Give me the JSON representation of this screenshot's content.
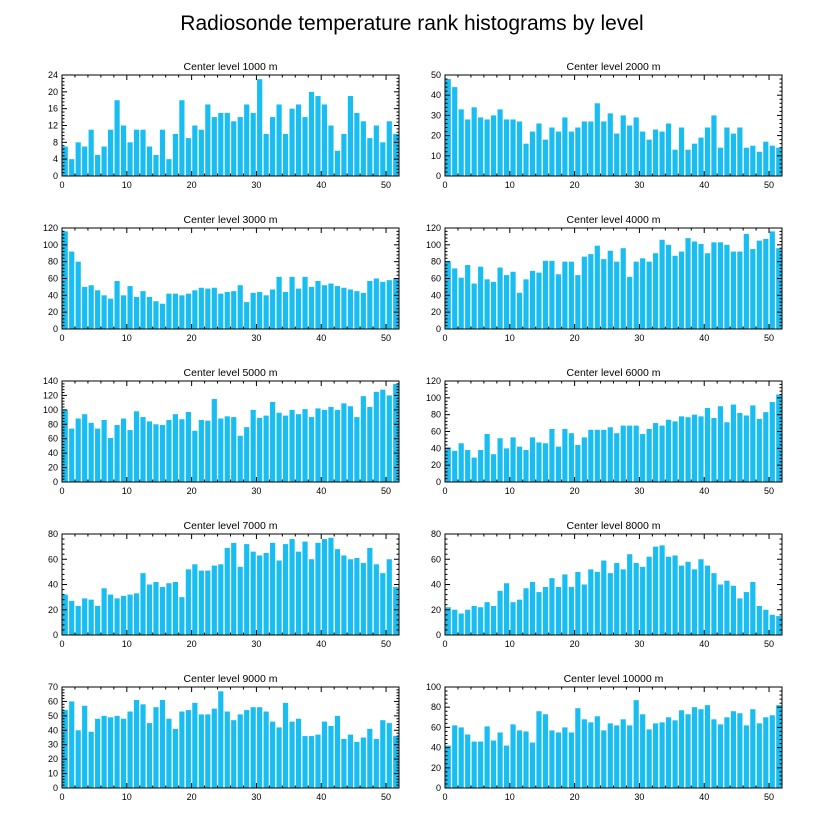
{
  "title": "Radiosonde temperature rank histograms by level",
  "bar_color": "#18bdf2",
  "chart_data": [
    {
      "type": "bar",
      "title": "Center level 1000 m",
      "xlim": [
        0,
        52
      ],
      "xticks": [
        0,
        10,
        20,
        30,
        40,
        50
      ],
      "ylim": [
        0,
        24
      ],
      "yticks": [
        0,
        4,
        8,
        12,
        16,
        20,
        24
      ],
      "x": [
        0,
        1,
        2,
        3,
        4,
        5,
        6,
        7,
        8,
        9,
        10,
        11,
        12,
        13,
        14,
        15,
        16,
        17,
        18,
        19,
        20,
        21,
        22,
        23,
        24,
        25,
        26,
        27,
        28,
        29,
        30,
        31,
        32,
        33,
        34,
        35,
        36,
        37,
        38,
        39,
        40,
        41,
        42,
        43,
        44,
        45,
        46,
        47,
        48,
        49,
        50,
        51
      ],
      "values": [
        7,
        4,
        8,
        7,
        11,
        5,
        7,
        11,
        18,
        12,
        8,
        11,
        11,
        7,
        5,
        11,
        4,
        10,
        18,
        9,
        12,
        11,
        17,
        14,
        15,
        15,
        13,
        14,
        17,
        15,
        23,
        10,
        14,
        17,
        10,
        16,
        17,
        14,
        20,
        19,
        17,
        12,
        6,
        10,
        19,
        15,
        13,
        9,
        12,
        8,
        13,
        10
      ]
    },
    {
      "type": "bar",
      "title": "Center level 2000 m",
      "xlim": [
        0,
        52
      ],
      "xticks": [
        0,
        10,
        20,
        30,
        40,
        50
      ],
      "ylim": [
        0,
        50
      ],
      "yticks": [
        0,
        10,
        20,
        30,
        40,
        50
      ],
      "x": [
        0,
        1,
        2,
        3,
        4,
        5,
        6,
        7,
        8,
        9,
        10,
        11,
        12,
        13,
        14,
        15,
        16,
        17,
        18,
        19,
        20,
        21,
        22,
        23,
        24,
        25,
        26,
        27,
        28,
        29,
        30,
        31,
        32,
        33,
        34,
        35,
        36,
        37,
        38,
        39,
        40,
        41,
        42,
        43,
        44,
        45,
        46,
        47,
        48,
        49,
        50,
        51
      ],
      "values": [
        48,
        44,
        33,
        28,
        34,
        29,
        28,
        30,
        33,
        28,
        28,
        27,
        16,
        22,
        26,
        18,
        24,
        22,
        29,
        22,
        24,
        27,
        27,
        36,
        27,
        31,
        21,
        30,
        25,
        29,
        22,
        18,
        23,
        22,
        26,
        13,
        24,
        13,
        16,
        19,
        24,
        30,
        14,
        24,
        21,
        24,
        14,
        15,
        12,
        17,
        15,
        14
      ]
    },
    {
      "type": "bar",
      "title": "Center level 3000 m",
      "xlim": [
        0,
        52
      ],
      "xticks": [
        0,
        10,
        20,
        30,
        40,
        50
      ],
      "ylim": [
        0,
        120
      ],
      "yticks": [
        0,
        20,
        40,
        60,
        80,
        100,
        120
      ],
      "x": [
        0,
        1,
        2,
        3,
        4,
        5,
        6,
        7,
        8,
        9,
        10,
        11,
        12,
        13,
        14,
        15,
        16,
        17,
        18,
        19,
        20,
        21,
        22,
        23,
        24,
        25,
        26,
        27,
        28,
        29,
        30,
        31,
        32,
        33,
        34,
        35,
        36,
        37,
        38,
        39,
        40,
        41,
        42,
        43,
        44,
        45,
        46,
        47,
        48,
        49,
        50,
        51
      ],
      "values": [
        116,
        92,
        80,
        50,
        52,
        46,
        40,
        36,
        57,
        40,
        51,
        38,
        45,
        38,
        33,
        30,
        42,
        42,
        40,
        42,
        46,
        49,
        48,
        49,
        42,
        44,
        45,
        52,
        32,
        43,
        44,
        40,
        47,
        62,
        44,
        62,
        48,
        62,
        50,
        57,
        52,
        54,
        51,
        49,
        47,
        45,
        43,
        57,
        60,
        56,
        58,
        60
      ]
    },
    {
      "type": "bar",
      "title": "Center level 4000 m",
      "xlim": [
        0,
        52
      ],
      "xticks": [
        0,
        10,
        20,
        30,
        40,
        50
      ],
      "ylim": [
        0,
        120
      ],
      "yticks": [
        0,
        20,
        40,
        60,
        80,
        100,
        120
      ],
      "x": [
        0,
        1,
        2,
        3,
        4,
        5,
        6,
        7,
        8,
        9,
        10,
        11,
        12,
        13,
        14,
        15,
        16,
        17,
        18,
        19,
        20,
        21,
        22,
        23,
        24,
        25,
        26,
        27,
        28,
        29,
        30,
        31,
        32,
        33,
        34,
        35,
        36,
        37,
        38,
        39,
        40,
        41,
        42,
        43,
        44,
        45,
        46,
        47,
        48,
        49,
        50,
        51
      ],
      "values": [
        80,
        72,
        61,
        76,
        54,
        74,
        59,
        56,
        73,
        64,
        68,
        43,
        59,
        69,
        67,
        81,
        81,
        65,
        80,
        80,
        64,
        86,
        89,
        99,
        83,
        93,
        80,
        96,
        62,
        80,
        84,
        80,
        90,
        106,
        100,
        87,
        92,
        108,
        104,
        101,
        90,
        103,
        103,
        100,
        92,
        92,
        113,
        95,
        105,
        107,
        116,
        96
      ]
    },
    {
      "type": "bar",
      "title": "Center level 5000 m",
      "xlim": [
        0,
        52
      ],
      "xticks": [
        0,
        10,
        20,
        30,
        40,
        50
      ],
      "ylim": [
        0,
        140
      ],
      "yticks": [
        0,
        20,
        40,
        60,
        80,
        100,
        120,
        140
      ],
      "x": [
        0,
        1,
        2,
        3,
        4,
        5,
        6,
        7,
        8,
        9,
        10,
        11,
        12,
        13,
        14,
        15,
        16,
        17,
        18,
        19,
        20,
        21,
        22,
        23,
        24,
        25,
        26,
        27,
        28,
        29,
        30,
        31,
        32,
        33,
        34,
        35,
        36,
        37,
        38,
        39,
        40,
        41,
        42,
        43,
        44,
        45,
        46,
        47,
        48,
        49,
        50,
        51
      ],
      "values": [
        100,
        74,
        88,
        94,
        82,
        74,
        86,
        61,
        79,
        88,
        72,
        98,
        90,
        84,
        80,
        79,
        86,
        94,
        87,
        97,
        71,
        86,
        85,
        115,
        88,
        91,
        90,
        64,
        76,
        100,
        89,
        92,
        111,
        96,
        92,
        100,
        94,
        101,
        90,
        102,
        100,
        104,
        100,
        109,
        105,
        90,
        119,
        104,
        125,
        128,
        120,
        136
      ]
    },
    {
      "type": "bar",
      "title": "Center level 6000 m",
      "xlim": [
        0,
        52
      ],
      "xticks": [
        0,
        10,
        20,
        30,
        40,
        50
      ],
      "ylim": [
        0,
        120
      ],
      "yticks": [
        0,
        20,
        40,
        60,
        80,
        100,
        120
      ],
      "x": [
        0,
        1,
        2,
        3,
        4,
        5,
        6,
        7,
        8,
        9,
        10,
        11,
        12,
        13,
        14,
        15,
        16,
        17,
        18,
        19,
        20,
        21,
        22,
        23,
        24,
        25,
        26,
        27,
        28,
        29,
        30,
        31,
        32,
        33,
        34,
        35,
        36,
        37,
        38,
        39,
        40,
        41,
        42,
        43,
        44,
        45,
        46,
        47,
        48,
        49,
        50,
        51
      ],
      "values": [
        41,
        37,
        46,
        38,
        29,
        38,
        57,
        33,
        52,
        40,
        53,
        42,
        38,
        53,
        47,
        46,
        63,
        42,
        63,
        58,
        44,
        53,
        62,
        62,
        62,
        65,
        58,
        67,
        67,
        67,
        57,
        63,
        70,
        67,
        74,
        72,
        78,
        77,
        80,
        78,
        88,
        76,
        90,
        71,
        92,
        82,
        79,
        91,
        75,
        83,
        95,
        104
      ]
    },
    {
      "type": "bar",
      "title": "Center level 7000 m",
      "xlim": [
        0,
        52
      ],
      "xticks": [
        0,
        10,
        20,
        30,
        40,
        50
      ],
      "ylim": [
        0,
        80
      ],
      "yticks": [
        0,
        20,
        40,
        60,
        80
      ],
      "x": [
        0,
        1,
        2,
        3,
        4,
        5,
        6,
        7,
        8,
        9,
        10,
        11,
        12,
        13,
        14,
        15,
        16,
        17,
        18,
        19,
        20,
        21,
        22,
        23,
        24,
        25,
        26,
        27,
        28,
        29,
        30,
        31,
        32,
        33,
        34,
        35,
        36,
        37,
        38,
        39,
        40,
        41,
        42,
        43,
        44,
        45,
        46,
        47,
        48,
        49,
        50,
        51
      ],
      "values": [
        32,
        27,
        23,
        29,
        28,
        23,
        37,
        32,
        29,
        31,
        32,
        33,
        49,
        40,
        42,
        38,
        41,
        42,
        30,
        52,
        56,
        51,
        51,
        55,
        56,
        69,
        73,
        54,
        72,
        66,
        63,
        65,
        73,
        59,
        72,
        76,
        66,
        74,
        60,
        73,
        76,
        77,
        68,
        63,
        60,
        61,
        57,
        69,
        56,
        49,
        60,
        38
      ]
    },
    {
      "type": "bar",
      "title": "Center level 8000 m",
      "xlim": [
        0,
        52
      ],
      "xticks": [
        0,
        10,
        20,
        30,
        40,
        50
      ],
      "ylim": [
        0,
        80
      ],
      "yticks": [
        0,
        20,
        40,
        60,
        80
      ],
      "x": [
        0,
        1,
        2,
        3,
        4,
        5,
        6,
        7,
        8,
        9,
        10,
        11,
        12,
        13,
        14,
        15,
        16,
        17,
        18,
        19,
        20,
        21,
        22,
        23,
        24,
        25,
        26,
        27,
        28,
        29,
        30,
        31,
        32,
        33,
        34,
        35,
        36,
        37,
        38,
        39,
        40,
        41,
        42,
        43,
        44,
        45,
        46,
        47,
        48,
        49,
        50,
        51
      ],
      "values": [
        22,
        20,
        17,
        20,
        23,
        22,
        26,
        23,
        35,
        41,
        26,
        28,
        37,
        42,
        34,
        38,
        45,
        38,
        48,
        38,
        50,
        40,
        52,
        50,
        59,
        49,
        57,
        52,
        64,
        57,
        54,
        62,
        70,
        71,
        62,
        63,
        55,
        58,
        52,
        60,
        55,
        49,
        40,
        43,
        39,
        29,
        34,
        42,
        23,
        20,
        16,
        15
      ]
    },
    {
      "type": "bar",
      "title": "Center level 9000 m",
      "xlim": [
        0,
        52
      ],
      "xticks": [
        0,
        10,
        20,
        30,
        40,
        50
      ],
      "ylim": [
        0,
        70
      ],
      "yticks": [
        0,
        10,
        20,
        30,
        40,
        50,
        60,
        70
      ],
      "x": [
        0,
        1,
        2,
        3,
        4,
        5,
        6,
        7,
        8,
        9,
        10,
        11,
        12,
        13,
        14,
        15,
        16,
        17,
        18,
        19,
        20,
        21,
        22,
        23,
        24,
        25,
        26,
        27,
        28,
        29,
        30,
        31,
        32,
        33,
        34,
        35,
        36,
        37,
        38,
        39,
        40,
        41,
        42,
        43,
        44,
        45,
        46,
        47,
        48,
        49,
        50,
        51
      ],
      "values": [
        54,
        60,
        40,
        57,
        39,
        48,
        50,
        49,
        50,
        48,
        53,
        61,
        58,
        45,
        56,
        61,
        48,
        41,
        53,
        54,
        59,
        51,
        51,
        55,
        67,
        53,
        47,
        51,
        54,
        56,
        56,
        53,
        46,
        42,
        59,
        46,
        48,
        36,
        36,
        37,
        46,
        43,
        50,
        34,
        37,
        32,
        35,
        41,
        34,
        47,
        45,
        36
      ]
    },
    {
      "type": "bar",
      "title": "Center level 10000 m",
      "xlim": [
        0,
        52
      ],
      "xticks": [
        0,
        10,
        20,
        30,
        40,
        50
      ],
      "ylim": [
        0,
        100
      ],
      "yticks": [
        0,
        20,
        40,
        60,
        80,
        100
      ],
      "x": [
        0,
        1,
        2,
        3,
        4,
        5,
        6,
        7,
        8,
        9,
        10,
        11,
        12,
        13,
        14,
        15,
        16,
        17,
        18,
        19,
        20,
        21,
        22,
        23,
        24,
        25,
        26,
        27,
        28,
        29,
        30,
        31,
        32,
        33,
        34,
        35,
        36,
        37,
        38,
        39,
        40,
        41,
        42,
        43,
        44,
        45,
        46,
        47,
        48,
        49,
        50,
        51
      ],
      "values": [
        42,
        62,
        60,
        53,
        46,
        46,
        61,
        47,
        55,
        42,
        63,
        57,
        56,
        45,
        76,
        73,
        57,
        55,
        60,
        55,
        79,
        68,
        65,
        71,
        57,
        64,
        62,
        68,
        62,
        87,
        73,
        58,
        64,
        65,
        70,
        67,
        77,
        73,
        80,
        78,
        82,
        68,
        63,
        70,
        76,
        74,
        62,
        78,
        64,
        70,
        72,
        82
      ]
    }
  ]
}
